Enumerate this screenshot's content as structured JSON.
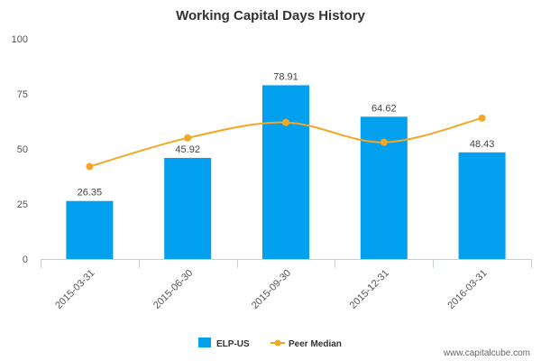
{
  "chart_data": {
    "type": "bar",
    "title": "Working Capital Days History",
    "categories": [
      "2015-03-31",
      "2015-06-30",
      "2015-09-30",
      "2015-12-31",
      "2016-03-31"
    ],
    "series": [
      {
        "name": "ELP-US",
        "type": "bar",
        "color": "#03a0f0",
        "values": [
          26.35,
          45.92,
          78.91,
          64.62,
          48.43
        ],
        "labels": [
          "26.35",
          "45.92",
          "78.91",
          "64.62",
          "48.43"
        ]
      },
      {
        "name": "Peer Median",
        "type": "line",
        "color": "#f5a623",
        "values": [
          42,
          55,
          62,
          53,
          64
        ]
      }
    ],
    "ylim": [
      0,
      100
    ],
    "yticks": [
      "0",
      "25",
      "50",
      "75",
      "100"
    ],
    "ytick_values": [
      0,
      25,
      50,
      75,
      100
    ],
    "grid": false,
    "legend_position": "bottom",
    "credit": "www.capitalcube.com"
  }
}
